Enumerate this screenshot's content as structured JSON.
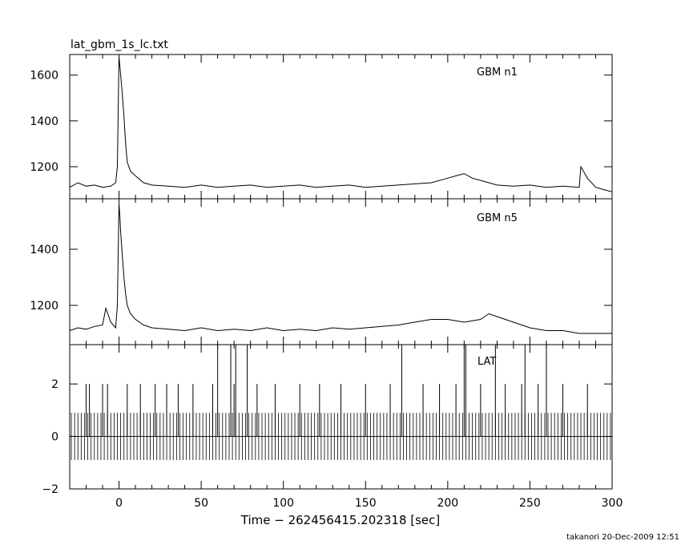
{
  "title": "lat_gbm_1s_lc.txt",
  "footer": "takanori 20-Dec-2009 12:51",
  "chart_data": {
    "type": "line",
    "title": "lat_gbm_1s_lc.txt",
    "xlabel": "Time − 262456415.202318 [sec]",
    "xlim": [
      -30,
      300
    ],
    "x_ticks": [
      "0",
      "50",
      "100",
      "150",
      "200",
      "250",
      "300"
    ],
    "grid": false,
    "panels": [
      {
        "name": "GBM n1",
        "ylim": [
          1060,
          1690
        ],
        "y_ticks": [
          "1200",
          "1400",
          "1600"
        ],
        "series": [
          {
            "name": "GBM n1",
            "x": [
              -30,
              -25,
              -20,
              -15,
              -10,
              -5,
              -2,
              -1,
              0,
              0.5,
              1,
              2,
              3,
              4,
              5,
              7,
              10,
              15,
              20,
              30,
              40,
              50,
              60,
              70,
              80,
              90,
              100,
              110,
              120,
              130,
              140,
              150,
              160,
              170,
              180,
              190,
              200,
              205,
              210,
              215,
              220,
              230,
              240,
              250,
              260,
              270,
              280,
              281,
              285,
              290,
              295,
              300
            ],
            "values": [
              1110,
              1130,
              1115,
              1120,
              1110,
              1115,
              1130,
              1200,
              1680,
              1640,
              1600,
              1520,
              1420,
              1300,
              1220,
              1180,
              1160,
              1130,
              1120,
              1115,
              1110,
              1120,
              1110,
              1115,
              1120,
              1110,
              1115,
              1120,
              1110,
              1115,
              1120,
              1110,
              1115,
              1120,
              1125,
              1130,
              1150,
              1160,
              1170,
              1150,
              1140,
              1120,
              1115,
              1120,
              1110,
              1115,
              1110,
              1200,
              1150,
              1110,
              1100,
              1090
            ]
          }
        ]
      },
      {
        "name": "GBM n5",
        "ylim": [
          1060,
          1580
        ],
        "y_ticks": [
          "1200",
          "1400"
        ],
        "series": [
          {
            "name": "GBM n5",
            "x": [
              -30,
              -25,
              -20,
              -15,
              -10,
              -8,
              -5,
              -2,
              -1,
              0,
              0.5,
              1,
              2,
              3,
              4,
              5,
              7,
              10,
              15,
              20,
              30,
              40,
              50,
              60,
              70,
              80,
              90,
              100,
              110,
              120,
              130,
              140,
              150,
              160,
              170,
              180,
              190,
              200,
              210,
              220,
              225,
              230,
              240,
              250,
              260,
              270,
              280,
              290,
              300
            ],
            "values": [
              1110,
              1120,
              1115,
              1125,
              1130,
              1190,
              1140,
              1120,
              1200,
              1560,
              1520,
              1460,
              1380,
              1300,
              1240,
              1200,
              1170,
              1150,
              1130,
              1120,
              1115,
              1110,
              1120,
              1110,
              1115,
              1110,
              1120,
              1110,
              1115,
              1110,
              1120,
              1115,
              1120,
              1125,
              1130,
              1140,
              1150,
              1150,
              1140,
              1150,
              1170,
              1160,
              1140,
              1120,
              1110,
              1110,
              1100,
              1100,
              1100
            ]
          }
        ]
      },
      {
        "name": "LAT",
        "ylim": [
          -2,
          3.5
        ],
        "y_ticks": [
          "−2",
          "0",
          "2"
        ],
        "series": [
          {
            "name": "LAT",
            "type": "bar",
            "baseline_positive": 0.9,
            "baseline_negative": -0.9,
            "spike_2": [
              -20,
              -18,
              -10,
              -7,
              5,
              13,
              22,
              29,
              36,
              45,
              57,
              70,
              84,
              95,
              110,
              122,
              135,
              150,
              165,
              185,
              195,
              205,
              220,
              235,
              245,
              255,
              270,
              285
            ],
            "spike_3_5": [
              60,
              68,
              71,
              78,
              172,
              210,
              211,
              229,
              247,
              260
            ]
          }
        ]
      }
    ]
  }
}
